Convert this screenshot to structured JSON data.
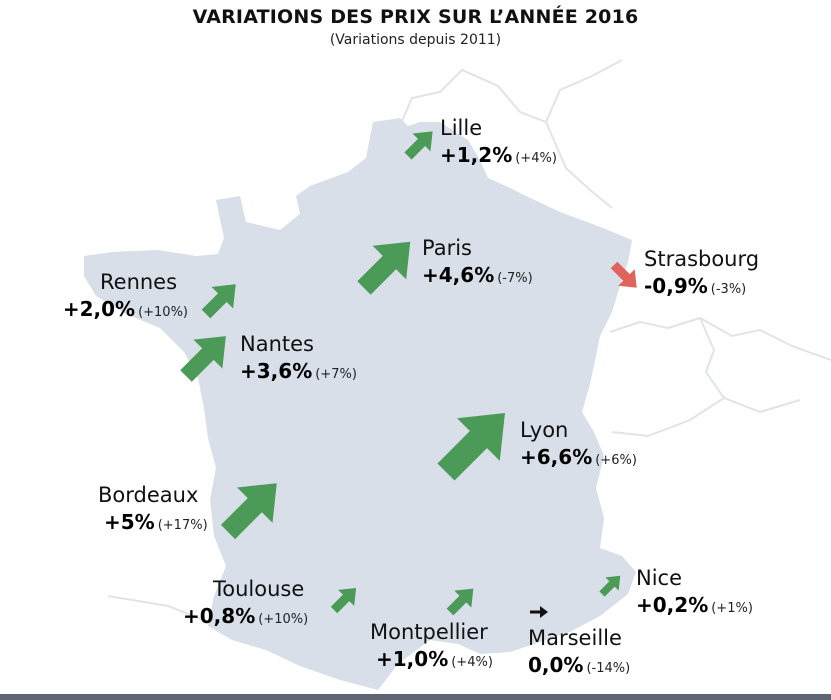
{
  "title": "VARIATIONS DES PRIX SUR L’ANNÉE 2016",
  "subtitle": "(Variations depuis 2011)",
  "colors": {
    "land": "#d8dfe9",
    "border": "#dfe4ec",
    "up": "#4c9a57",
    "down": "#e0635c",
    "flat": "#111111"
  },
  "cities": [
    {
      "id": "lille",
      "name": "Lille",
      "variation": "+1,2%",
      "since": "(+4%)",
      "trend": "up",
      "magnitude": 1.2
    },
    {
      "id": "paris",
      "name": "Paris",
      "variation": "+4,6%",
      "since": "(-7%)",
      "trend": "up",
      "magnitude": 4.6
    },
    {
      "id": "strasbourg",
      "name": "Strasbourg",
      "variation": "-0,9%",
      "since": "(-3%)",
      "trend": "down",
      "magnitude": 0.9
    },
    {
      "id": "rennes",
      "name": "Rennes",
      "variation": "+2,0%",
      "since": "(+10%)",
      "trend": "up",
      "magnitude": 2.0
    },
    {
      "id": "nantes",
      "name": "Nantes",
      "variation": "+3,6%",
      "since": "(+7%)",
      "trend": "up",
      "magnitude": 3.6
    },
    {
      "id": "lyon",
      "name": "Lyon",
      "variation": "+6,6%",
      "since": "(+6%)",
      "trend": "up",
      "magnitude": 6.6
    },
    {
      "id": "bordeaux",
      "name": "Bordeaux",
      "variation": "+5%",
      "since": "(+17%)",
      "trend": "up",
      "magnitude": 5.0
    },
    {
      "id": "nice",
      "name": "Nice",
      "variation": "+0,2%",
      "since": "(+1%)",
      "trend": "up",
      "magnitude": 0.2
    },
    {
      "id": "toulouse",
      "name": "Toulouse",
      "variation": "+0,8%",
      "since": "(+10%)",
      "trend": "up",
      "magnitude": 0.8
    },
    {
      "id": "montpellier",
      "name": "Montpellier",
      "variation": "+1,0%",
      "since": "(+4%)",
      "trend": "up",
      "magnitude": 1.0
    },
    {
      "id": "marseille",
      "name": "Marseille",
      "variation": "0,0%",
      "since": "(-14%)",
      "trend": "flat",
      "magnitude": 0.0
    }
  ]
}
